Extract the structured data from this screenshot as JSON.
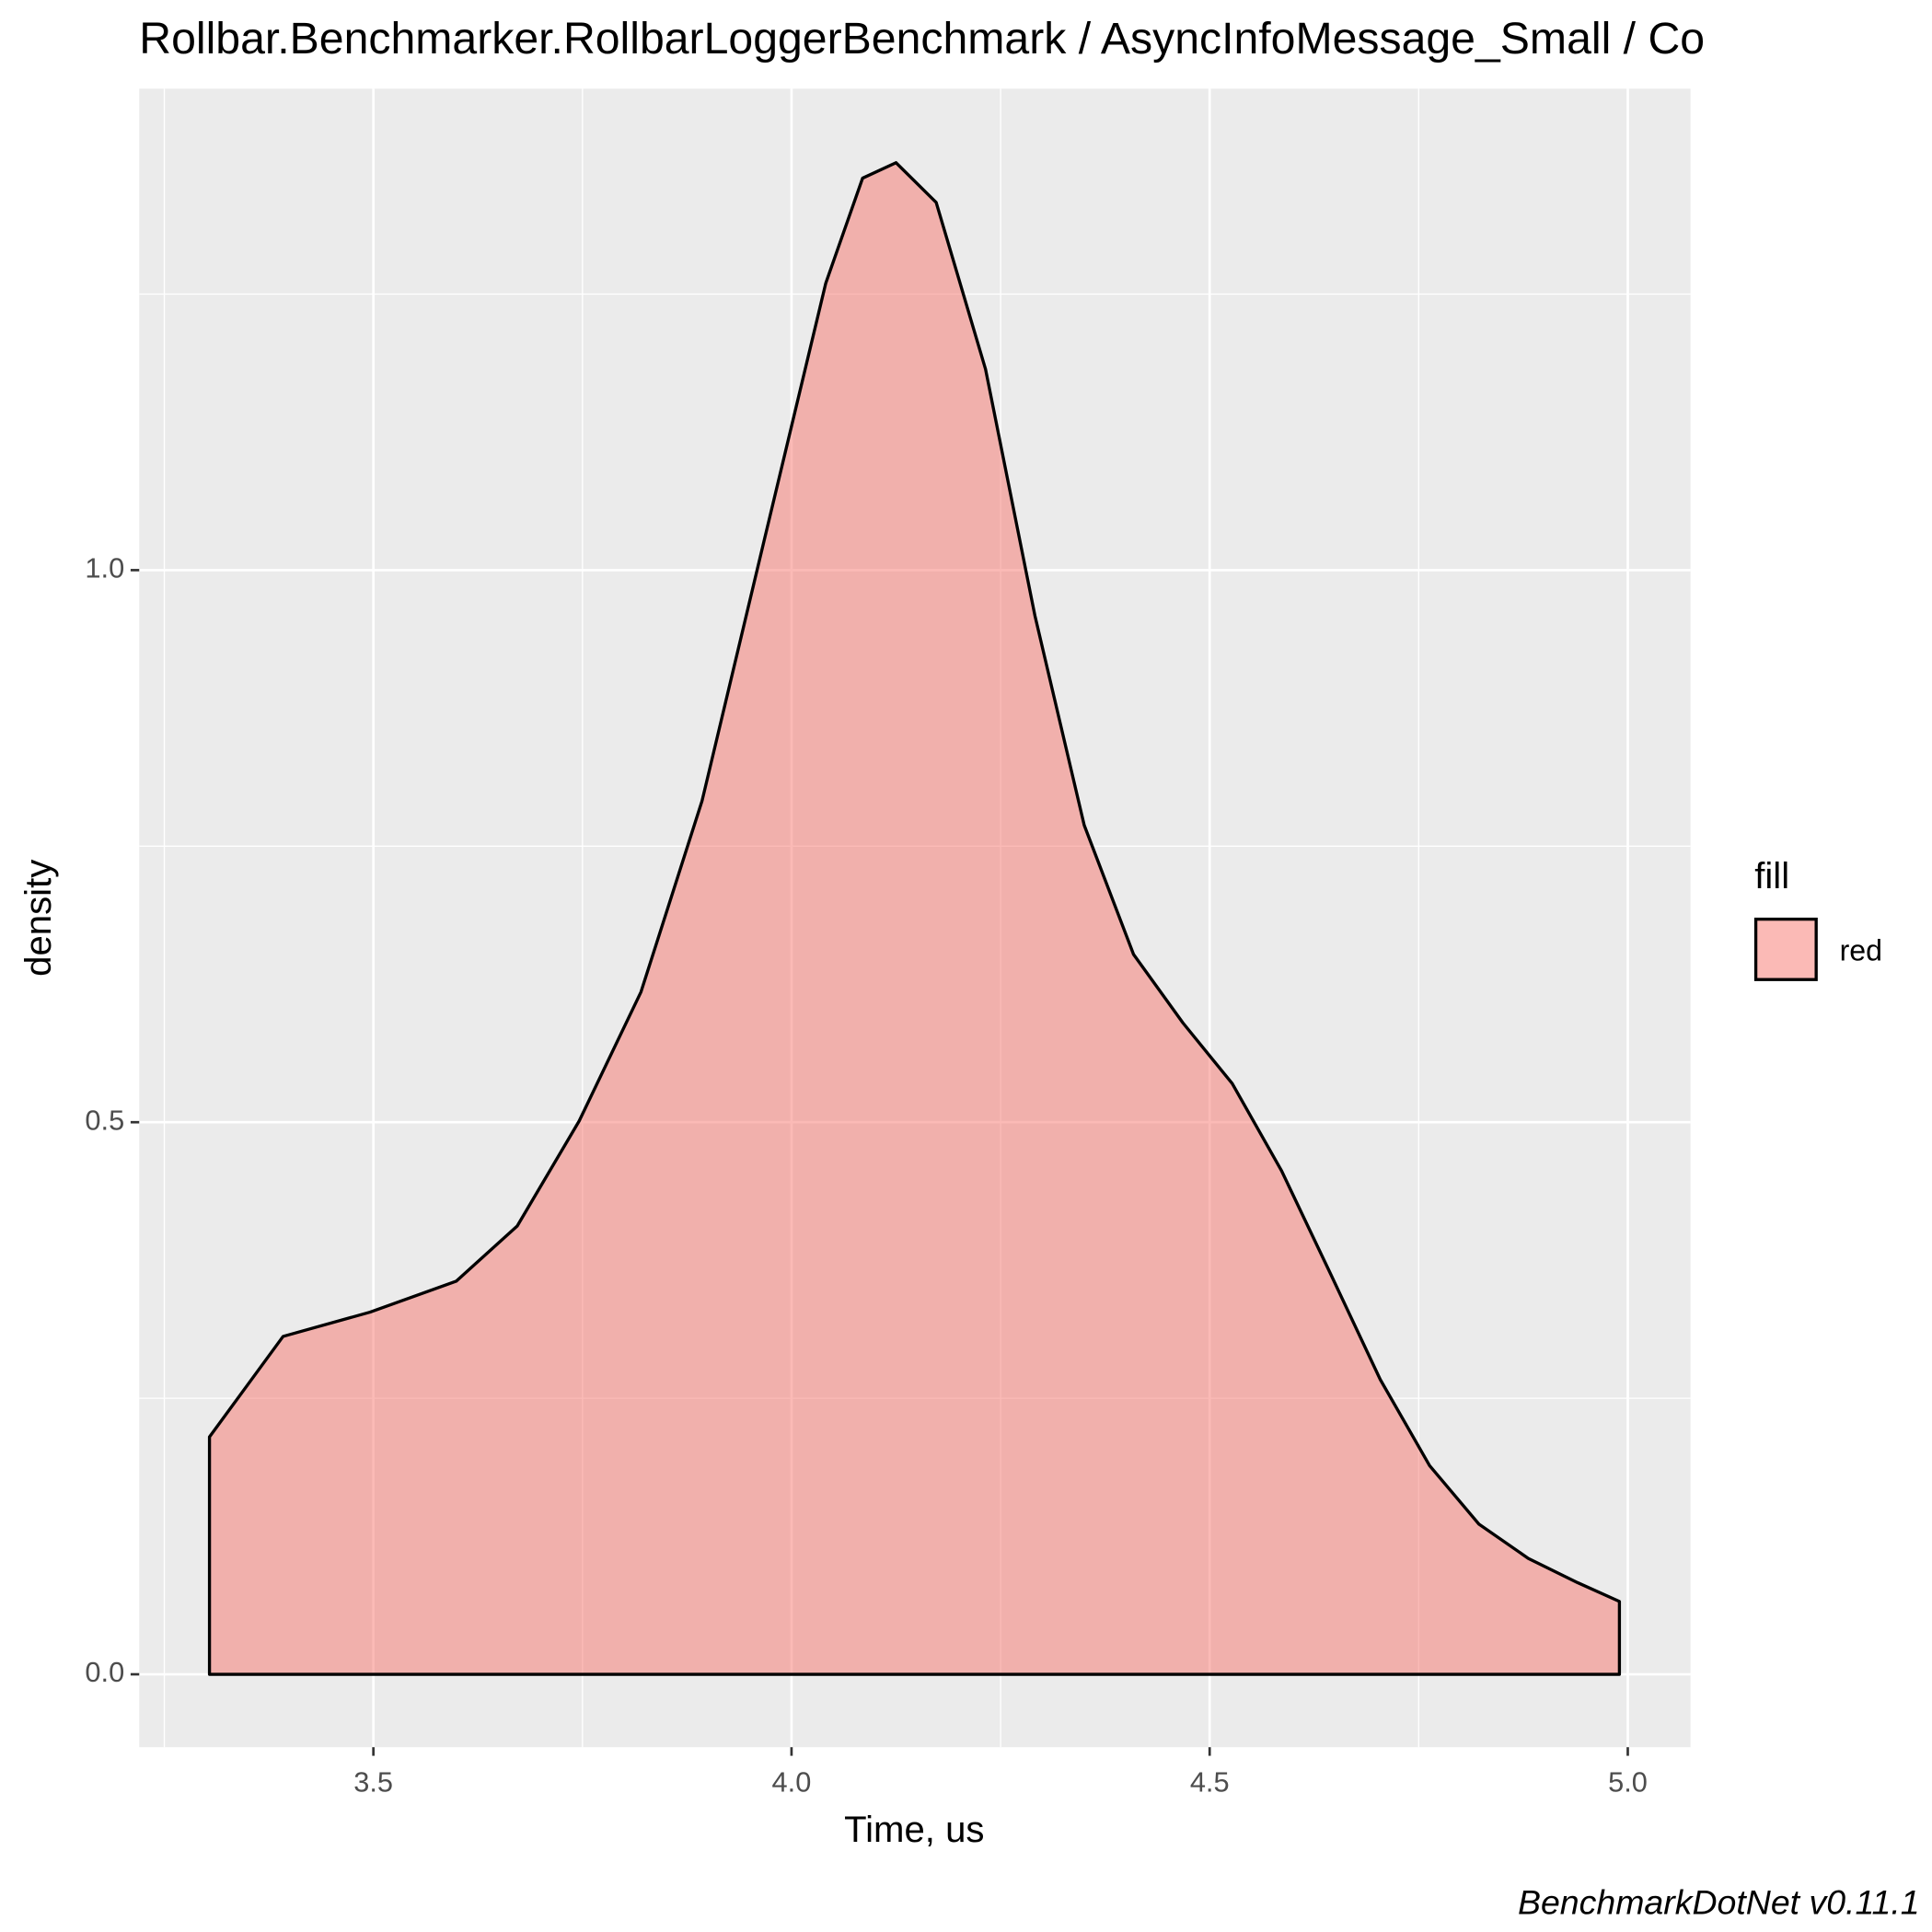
{
  "chart_data": {
    "type": "density",
    "title": "Rollbar.Benchmarker.RollbarLoggerBenchmark / AsyncInfoMessage_Small / Co",
    "xlabel": "Time, us",
    "ylabel": "density",
    "caption": "BenchmarkDotNet v0.11.1",
    "legend_title": "fill",
    "legend_position": "right",
    "alpha": 0.5,
    "grid": true,
    "xlim": [
      3.22,
      5.075
    ],
    "ylim": [
      -0.066,
      1.436
    ],
    "xticks": [
      3.5,
      {
        "value": 4,
        "label": "4.0"
      },
      4.5,
      {
        "value": 5,
        "label": "5.0"
      }
    ],
    "yticks": [
      {
        "value": 0,
        "label": "0.0"
      },
      0.5,
      {
        "value": 1,
        "label": "1.0"
      }
    ],
    "x_minor_ticks": [
      3.25,
      3.75,
      4.25,
      4.75
    ],
    "y_minor_ticks": [
      0.25,
      0.75,
      1.25
    ],
    "series": [
      {
        "name": "red",
        "color": "#F8766D",
        "x": [
          3.304,
          3.392,
          3.496,
          3.599,
          3.672,
          3.746,
          3.82,
          3.893,
          3.967,
          4.041,
          4.085,
          4.125,
          4.173,
          4.232,
          4.291,
          4.35,
          4.409,
          4.468,
          4.527,
          4.586,
          4.645,
          4.704,
          4.763,
          4.822,
          4.881,
          4.94,
          4.99
        ],
        "values": [
          0.215,
          0.306,
          0.328,
          0.356,
          0.406,
          0.501,
          0.618,
          0.791,
          1.026,
          1.26,
          1.355,
          1.369,
          1.333,
          1.182,
          0.959,
          0.769,
          0.652,
          0.59,
          0.535,
          0.456,
          0.362,
          0.267,
          0.189,
          0.136,
          0.105,
          0.083,
          0.066
        ]
      }
    ]
  }
}
